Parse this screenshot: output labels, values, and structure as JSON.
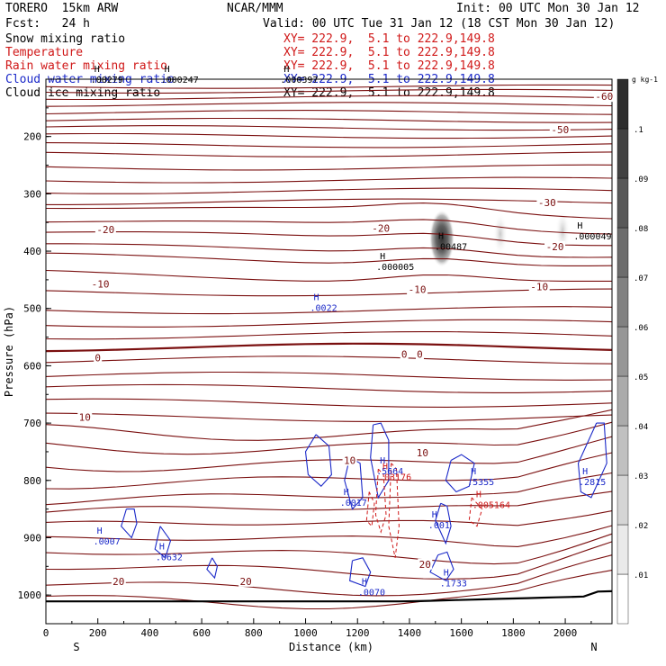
{
  "header": {
    "left_line1": "TORERO  15km ARW",
    "center_line1": "NCAR/MMM",
    "right_line1": "Init: 00 UTC Mon 30 Jan 12",
    "left_line2": "Fcst:   24 h",
    "right_line2": "Valid: 00 UTC Tue 31 Jan 12 (18 CST Mon 30 Jan 12)"
  },
  "fields": [
    {
      "name": "Snow mixing ratio",
      "xy": "XY= 222.9,  5.1 to 222.9,149.8",
      "color": "#000000"
    },
    {
      "name": "Temperature",
      "xy": "XY= 222.9,  5.1 to 222.9,149.8",
      "color": "#d01818"
    },
    {
      "name": "Rain water mixing ratio",
      "xy": "XY= 222.9,  5.1 to 222.9,149.8",
      "color": "#d01818"
    },
    {
      "name": "Cloud water mixing ratio",
      "xy": "XY= 222.9,  5.1 to 222.9,149.8",
      "color": "#1a28c8"
    },
    {
      "name": "Cloud ice mixing ratio",
      "xy": "XY= 222.9,  5.1 to 222.9,149.8",
      "color": "#000000"
    }
  ],
  "chart_data": {
    "type": "cross-section contour",
    "xlabel": "Distance (km)",
    "ylabel": "Pressure (hPa)",
    "xlim": [
      0,
      2180
    ],
    "ylim": [
      1050,
      100
    ],
    "x_ticks": [
      0,
      200,
      400,
      600,
      800,
      1000,
      1200,
      1400,
      1600,
      1800,
      2000
    ],
    "y_ticks": [
      200,
      300,
      400,
      500,
      600,
      700,
      800,
      900,
      1000
    ],
    "x_end_labels": {
      "left": "S",
      "right": "N"
    },
    "colorbar": {
      "unit": "g kg",
      "unit_exp": "-1",
      "ticks": [
        ".01",
        ".02",
        ".03",
        ".04",
        ".05",
        ".06",
        ".07",
        ".08",
        ".09",
        ".1"
      ],
      "top_label": "g kg-1"
    },
    "temperature_contours": [
      {
        "level": -60,
        "label": "-60",
        "label_x": 2150,
        "label_p": 130
      },
      {
        "level": -50,
        "label": "-50",
        "label_x": 1980,
        "label_p": 188
      },
      {
        "level": -30,
        "label": "-30",
        "label_x": 1930,
        "label_p": 315
      },
      {
        "level": -20,
        "label": "-20",
        "label_x": 230,
        "label_p": 362
      },
      {
        "level": -20,
        "label": "-20",
        "label_x": 1290,
        "label_p": 360
      },
      {
        "level": -20,
        "label": "-20",
        "label_x": 1960,
        "label_p": 392
      },
      {
        "level": -10,
        "label": "-10",
        "label_x": 210,
        "label_p": 457
      },
      {
        "level": -10,
        "label": "-10",
        "label_x": 1430,
        "label_p": 467
      },
      {
        "level": -10,
        "label": "-10",
        "label_x": 1900,
        "label_p": 462
      },
      {
        "level": 0,
        "label": "0",
        "label_x": 200,
        "label_p": 586
      },
      {
        "level": 0,
        "label": "0",
        "label_x": 1380,
        "label_p": 580
      },
      {
        "level": 0,
        "label": "0",
        "label_x": 1440,
        "label_p": 580
      },
      {
        "level": 10,
        "label": "10",
        "label_x": 150,
        "label_p": 690
      },
      {
        "level": 10,
        "label": "10",
        "label_x": 1170,
        "label_p": 765
      },
      {
        "level": 10,
        "label": "10",
        "label_x": 1450,
        "label_p": 752
      },
      {
        "level": 20,
        "label": "20",
        "label_x": 280,
        "label_p": 976
      },
      {
        "level": 20,
        "label": "20",
        "label_x": 770,
        "label_p": 976
      },
      {
        "level": 20,
        "label": "20",
        "label_x": 1460,
        "label_p": 946
      }
    ],
    "extrema": [
      {
        "type": "H",
        "value": ".00487",
        "x": 1525,
        "p": 385,
        "field": "snow",
        "color": "#000000"
      },
      {
        "type": "H",
        "value": ".000005",
        "x": 1300,
        "p": 420,
        "field": "snow",
        "color": "#000000"
      },
      {
        "type": "H",
        "value": ".000049",
        "x": 2060,
        "p": 367,
        "field": "snow",
        "color": "#000000"
      },
      {
        "type": "H",
        "value": ".0022",
        "x": 1045,
        "p": 492,
        "field": "cloud water",
        "color": "#1a28c8"
      },
      {
        "type": "H",
        "value": ".5664",
        "x": 1300,
        "p": 777,
        "field": "cloud water",
        "color": "#1a28c8"
      },
      {
        "type": "H",
        "value": ".5355",
        "x": 1650,
        "p": 796,
        "field": "cloud water",
        "color": "#1a28c8"
      },
      {
        "type": "H",
        "value": ".2815",
        "x": 2080,
        "p": 796,
        "field": "cloud water",
        "color": "#1a28c8"
      },
      {
        "type": "H",
        "value": ".0017",
        "x": 1160,
        "p": 832,
        "field": "cloud water",
        "color": "#1a28c8"
      },
      {
        "type": "H",
        "value": ".0007",
        "x": 210,
        "p": 899,
        "field": "cloud water",
        "color": "#1a28c8"
      },
      {
        "type": "H",
        "value": ".0632",
        "x": 450,
        "p": 927,
        "field": "cloud water",
        "color": "#1a28c8"
      },
      {
        "type": "H",
        "value": ".0070",
        "x": 1230,
        "p": 988,
        "field": "cloud water",
        "color": "#1a28c8"
      },
      {
        "type": "H",
        "value": ".001",
        "x": 1500,
        "p": 871,
        "field": "cloud water",
        "color": "#1a28c8"
      },
      {
        "type": "H",
        "value": ".1733",
        "x": 1545,
        "p": 972,
        "field": "cloud water",
        "color": "#1a28c8"
      },
      {
        "type": "H",
        "value": ".03176",
        "x": 1310,
        "p": 787,
        "field": "rain water",
        "color": "#d01818"
      },
      {
        "type": "H",
        "value": ".005164",
        "x": 1670,
        "p": 836,
        "field": "rain water",
        "color": "#d01818"
      },
      {
        "type": "H",
        "value": ".00279",
        "x": 200,
        "p": 94,
        "field": "cloud ice",
        "color": "#000000"
      },
      {
        "type": "H",
        "value": ".000247",
        "x": 470,
        "p": 94,
        "field": "cloud ice",
        "color": "#000000"
      },
      {
        "type": "H",
        "value": ".000397",
        "x": 930,
        "p": 94,
        "field": "cloud ice",
        "color": "#000000"
      }
    ],
    "snow_shading": [
      {
        "x": 1525,
        "p": 378,
        "max": 0.1
      },
      {
        "x": 1750,
        "p": 370,
        "max": 0.02
      },
      {
        "x": 1990,
        "p": 365,
        "max": 0.015
      }
    ]
  }
}
